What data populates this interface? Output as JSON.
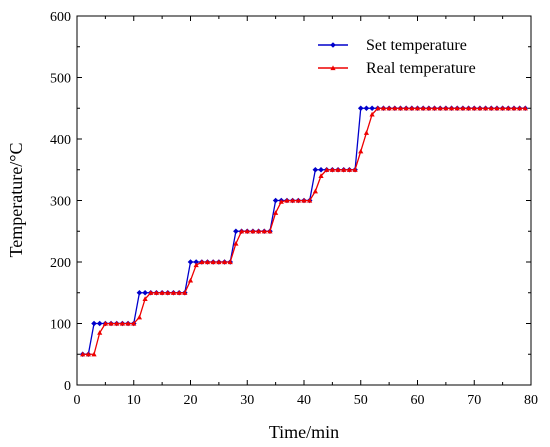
{
  "chart_data": {
    "type": "line",
    "title": "",
    "xlabel": "Time/min",
    "ylabel": "Temperature/°C",
    "xlim": [
      0,
      80
    ],
    "ylim": [
      0,
      600
    ],
    "xticks": [
      "0",
      "10",
      "20",
      "30",
      "40",
      "50",
      "60",
      "70",
      "80"
    ],
    "yticks": [
      "0",
      "100",
      "200",
      "300",
      "400",
      "500",
      "600"
    ],
    "grid": false,
    "legend_position": "top-right",
    "series": [
      {
        "name": "Set temperature",
        "color": "#0000cc",
        "marker": "diamond",
        "x": [
          1,
          2,
          3,
          4,
          5,
          6,
          7,
          8,
          9,
          10,
          11,
          12,
          13,
          14,
          15,
          16,
          17,
          18,
          19,
          20,
          21,
          22,
          23,
          24,
          25,
          26,
          27,
          28,
          29,
          30,
          31,
          32,
          33,
          34,
          35,
          36,
          37,
          38,
          39,
          40,
          41,
          42,
          43,
          44,
          45,
          46,
          47,
          48,
          49,
          50,
          51,
          52,
          53,
          54,
          55,
          56,
          57,
          58,
          59,
          60,
          61,
          62,
          63,
          64,
          65,
          66,
          67,
          68,
          69,
          70,
          71,
          72,
          73,
          74,
          75,
          76,
          77,
          78,
          79
        ],
        "y": [
          50,
          50,
          100,
          100,
          100,
          100,
          100,
          100,
          100,
          100,
          150,
          150,
          150,
          150,
          150,
          150,
          150,
          150,
          150,
          200,
          200,
          200,
          200,
          200,
          200,
          200,
          200,
          250,
          250,
          250,
          250,
          250,
          250,
          250,
          300,
          300,
          300,
          300,
          300,
          300,
          300,
          350,
          350,
          350,
          350,
          350,
          350,
          350,
          350,
          450,
          450,
          450,
          450,
          450,
          450,
          450,
          450,
          450,
          450,
          450,
          450,
          450,
          450,
          450,
          450,
          450,
          450,
          450,
          450,
          450,
          450,
          450,
          450,
          450,
          450,
          450,
          450,
          450,
          450
        ]
      },
      {
        "name": "Real temperature",
        "color": "#ee0000",
        "marker": "triangle",
        "x": [
          1,
          2,
          3,
          4,
          5,
          6,
          7,
          8,
          9,
          10,
          11,
          12,
          13,
          14,
          15,
          16,
          17,
          18,
          19,
          20,
          21,
          22,
          23,
          24,
          25,
          26,
          27,
          28,
          29,
          30,
          31,
          32,
          33,
          34,
          35,
          36,
          37,
          38,
          39,
          40,
          41,
          42,
          43,
          44,
          45,
          46,
          47,
          48,
          49,
          50,
          51,
          52,
          53,
          54,
          55,
          56,
          57,
          58,
          59,
          60,
          61,
          62,
          63,
          64,
          65,
          66,
          67,
          68,
          69,
          70,
          71,
          72,
          73,
          74,
          75,
          76,
          77,
          78,
          79
        ],
        "y": [
          50,
          50,
          50,
          85,
          100,
          100,
          100,
          100,
          100,
          100,
          110,
          140,
          150,
          150,
          150,
          150,
          150,
          150,
          150,
          170,
          195,
          200,
          200,
          200,
          200,
          200,
          200,
          230,
          250,
          250,
          250,
          250,
          250,
          250,
          280,
          298,
          300,
          300,
          300,
          300,
          300,
          315,
          340,
          350,
          350,
          350,
          350,
          350,
          350,
          380,
          410,
          440,
          450,
          450,
          450,
          450,
          450,
          450,
          450,
          450,
          450,
          450,
          450,
          450,
          450,
          450,
          450,
          450,
          450,
          450,
          450,
          450,
          450,
          450,
          450,
          450,
          450,
          450,
          450
        ]
      }
    ]
  }
}
